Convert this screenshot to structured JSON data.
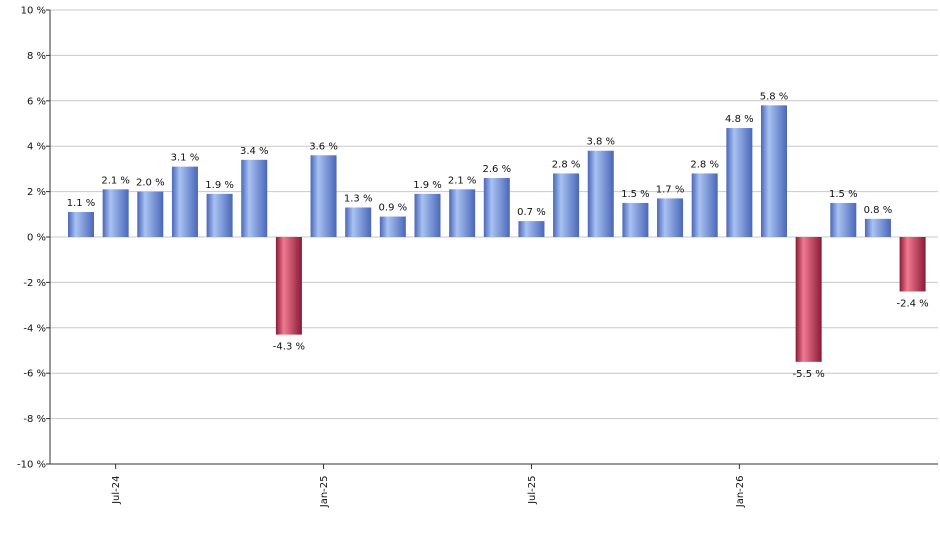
{
  "chart_data": {
    "type": "bar",
    "values": [
      1.1,
      2.1,
      2.0,
      3.1,
      1.9,
      3.4,
      -4.3,
      3.6,
      1.3,
      0.9,
      1.9,
      2.1,
      2.6,
      0.7,
      2.8,
      3.8,
      1.5,
      1.7,
      2.8,
      4.8,
      5.8,
      -5.5,
      1.5,
      0.8,
      -2.4
    ],
    "data_labels": [
      "1.1 %",
      "2.1 %",
      "2.0 %",
      "3.1 %",
      "1.9 %",
      "3.4 %",
      "-4.3 %",
      "3.6 %",
      "1.3 %",
      "0.9 %",
      "1.9 %",
      "2.1 %",
      "2.6 %",
      "0.7 %",
      "2.8 %",
      "3.8 %",
      "1.5 %",
      "1.7 %",
      "2.8 %",
      "4.8 %",
      "5.8 %",
      "-5.5 %",
      "1.5 %",
      "0.8 %",
      "-2.4 %"
    ],
    "x_ticks": [
      {
        "index": 1,
        "label": "Jul-24"
      },
      {
        "index": 7,
        "label": "Jan-25"
      },
      {
        "index": 13,
        "label": "Jul-25"
      },
      {
        "index": 19,
        "label": "Jan-26"
      }
    ],
    "y_ticks": [
      {
        "value": 10,
        "label": "10 %"
      },
      {
        "value": 8,
        "label": "8 %"
      },
      {
        "value": 6,
        "label": "6 %"
      },
      {
        "value": 4,
        "label": "4 %"
      },
      {
        "value": 2,
        "label": "2 %"
      },
      {
        "value": 0,
        "label": "0 %"
      },
      {
        "value": -2,
        "label": "-2 %"
      },
      {
        "value": -4,
        "label": "-4 %"
      },
      {
        "value": -6,
        "label": "-6 %"
      },
      {
        "value": -8,
        "label": "-8 %"
      },
      {
        "value": -10,
        "label": "-10 %"
      }
    ],
    "ylim": [
      -10,
      10
    ],
    "grid": true,
    "colors": {
      "positive_light": "#a9c2f2",
      "positive_dark": "#4a67b8",
      "negative_light": "#f07a90",
      "negative_dark": "#8a1a35"
    }
  }
}
